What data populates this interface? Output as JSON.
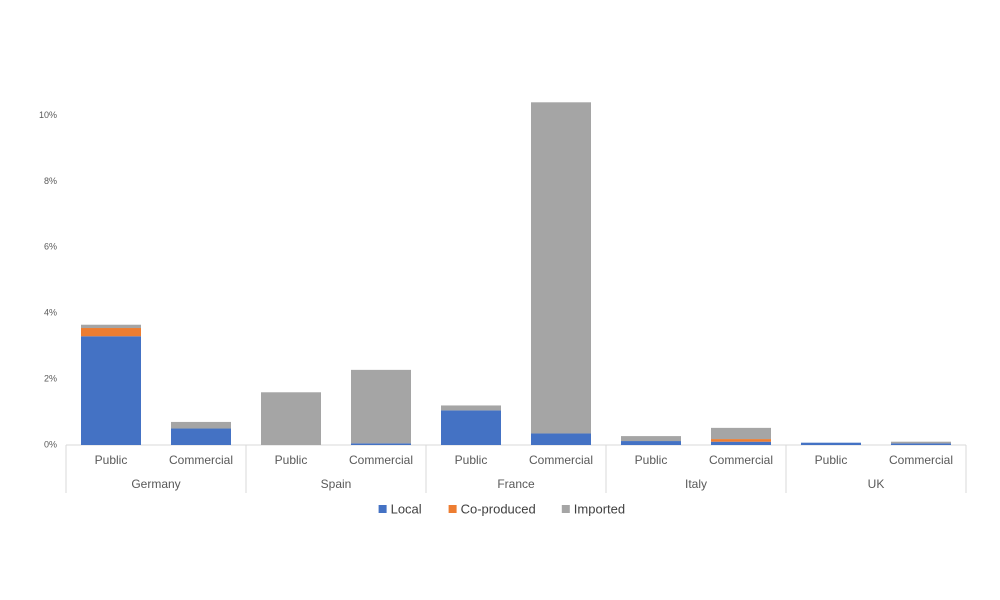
{
  "chart_data": {
    "type": "stacked-bar",
    "categories": [
      "Public",
      "Commercial",
      "Public",
      "Commercial",
      "Public",
      "Commercial",
      "Public",
      "Commercial",
      "Public",
      "Commercial"
    ],
    "groups": [
      "Germany",
      "Spain",
      "France",
      "Italy",
      "UK"
    ],
    "series": [
      {
        "name": "Local",
        "color": "#4472c4",
        "values": [
          3.3,
          0.5,
          0,
          0.05,
          1.05,
          0.35,
          0.12,
          0.1,
          0.07,
          0.05
        ]
      },
      {
        "name": "Co-produced",
        "color": "#ed7d31",
        "values": [
          0.25,
          0,
          0,
          0,
          0,
          0,
          0,
          0.08,
          0,
          0
        ]
      },
      {
        "name": "Imported",
        "color": "#a5a5a5",
        "values": [
          0.1,
          0.2,
          1.6,
          2.23,
          0.15,
          10.05,
          0.15,
          0.34,
          0,
          0.05
        ]
      }
    ],
    "ylim": [
      0,
      10.5
    ],
    "yticks": [
      {
        "value": 0,
        "label": "0%"
      },
      {
        "value": 2,
        "label": "2%"
      },
      {
        "value": 4,
        "label": "4%"
      },
      {
        "value": 6,
        "label": "6%"
      },
      {
        "value": 8,
        "label": "8%"
      },
      {
        "value": 10,
        "label": "10%"
      }
    ],
    "legend": "bottom",
    "grid": false
  }
}
